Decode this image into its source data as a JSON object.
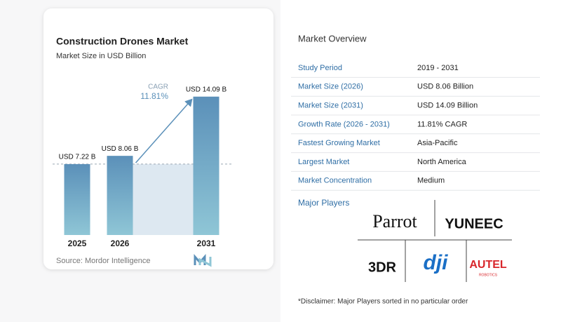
{
  "chart_data": {
    "type": "bar",
    "title": "Construction Drones Market",
    "subtitle": "Market Size in USD Billion",
    "categories": [
      "2025",
      "2026",
      "2031"
    ],
    "values": [
      7.22,
      8.06,
      14.09
    ],
    "value_labels": [
      "USD 7.22 B",
      "USD 8.06 B",
      "USD 14.09 B"
    ],
    "color": "#5b90b9",
    "annotation": {
      "label": "CAGR",
      "value": "11.81%"
    },
    "source": "Source: Mordor Intelligence"
  },
  "overview": {
    "title": "Market Overview",
    "rows": [
      [
        "Study Period",
        "2019 - 2031"
      ],
      [
        "Market Size (2026)",
        "USD 8.06 Billion"
      ],
      [
        "Market Size (2031)",
        "USD 14.09 Billion"
      ],
      [
        "Growth Rate (2026 - 2031)",
        "11.81% CAGR"
      ],
      [
        "Fastest Growing Market",
        "Asia-Pacific"
      ],
      [
        "Largest Market",
        "North America"
      ],
      [
        "Market Concentration",
        "Medium"
      ]
    ],
    "players_title": "Major Players",
    "players": [
      {
        "name": "Parrot"
      },
      {
        "name": "YUNEEC"
      },
      {
        "name": "3DR"
      },
      {
        "name": "dji"
      },
      {
        "name": "AUTEL",
        "tagline": "ROBOTICS"
      }
    ],
    "disclaimer": "*Disclaimer: Major Players sorted in no particular order"
  }
}
